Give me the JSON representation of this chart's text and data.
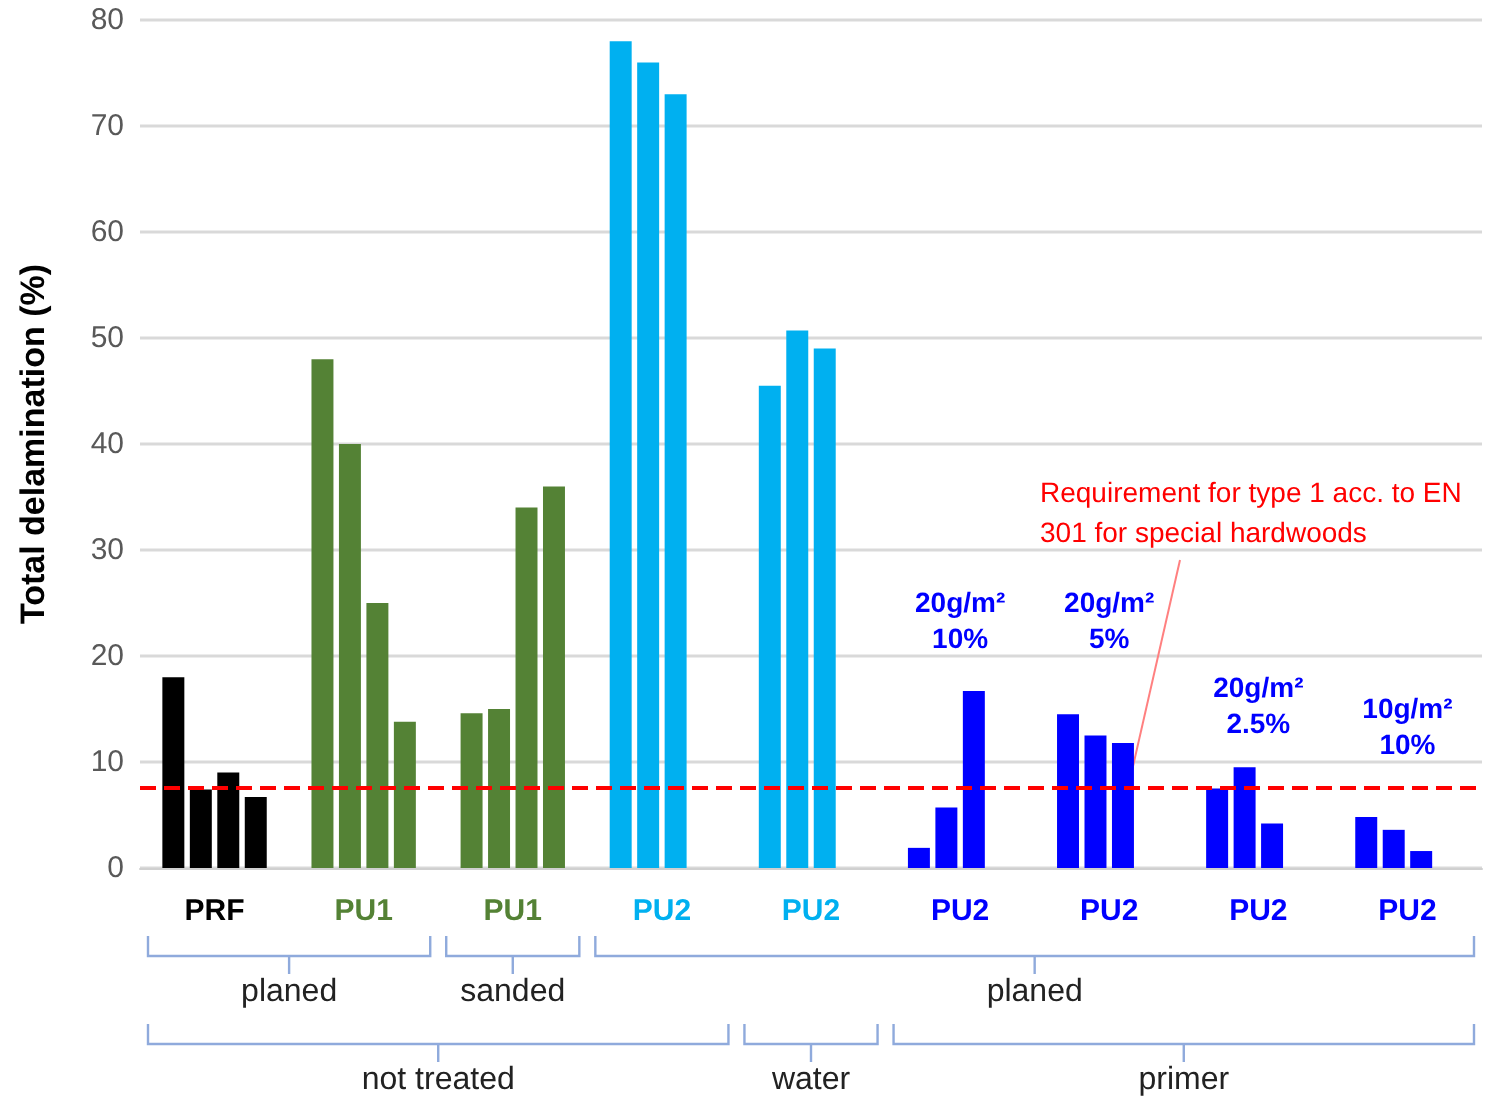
{
  "chart_data": {
    "type": "bar",
    "ylabel": "Total delamination (%)",
    "categories": [
      "PRF",
      "PU1",
      "PU1",
      "PU2",
      "PU2",
      "PU2",
      "PU2",
      "PU2",
      "PU2"
    ],
    "series": [
      {
        "colors": [
          "#000000",
          "#548235",
          "#548235",
          "#00b0f0",
          "#00b0f0",
          "#0000ff",
          "#0000ff",
          "#0000ff",
          "#0000ff"
        ],
        "values": [
          18,
          48,
          14.6,
          78,
          45.5,
          1.9,
          14.5,
          7.5,
          4.8
        ]
      },
      {
        "colors": [
          "#000000",
          "#548235",
          "#548235",
          "#00b0f0",
          "#00b0f0",
          "#0000ff",
          "#0000ff",
          "#0000ff",
          "#0000ff"
        ],
        "values": [
          7.4,
          40,
          15,
          76,
          50.7,
          5.7,
          12.5,
          9.5,
          3.6
        ]
      },
      {
        "colors": [
          "#000000",
          "#548235",
          "#548235",
          "#00b0f0",
          "#00b0f0",
          "#0000ff",
          "#0000ff",
          "#0000ff",
          "#0000ff"
        ],
        "values": [
          9,
          25,
          34,
          73,
          49,
          16.7,
          11.8,
          4.2,
          1.6
        ]
      },
      {
        "colors": [
          "#000000",
          "#548235",
          "#548235",
          "#00b0f0",
          "#00b0f0",
          "#0000ff",
          "#0000ff",
          "#0000ff",
          "#0000ff"
        ],
        "values": [
          6.7,
          13.8,
          36,
          null,
          null,
          null,
          null,
          null,
          null
        ]
      }
    ],
    "ylim": [
      0,
      80
    ],
    "yticks": [
      0,
      10,
      20,
      30,
      40,
      50,
      60,
      70,
      80
    ],
    "grid": "y",
    "ref_lines": [
      {
        "axis": "y",
        "value": 7.6,
        "label": "Requirement for type 1 acc. to EN 301 for special hardwoods",
        "color": "#ff0000",
        "line_style": "dashed"
      }
    ],
    "annotations": [
      "20g/m²\n10%",
      "20g/m²\n5%",
      "20g/m²\n2.5%",
      "10g/m²\n10%",
      "planed",
      "sanded",
      "planed",
      "not treated",
      "water",
      "primer"
    ]
  }
}
